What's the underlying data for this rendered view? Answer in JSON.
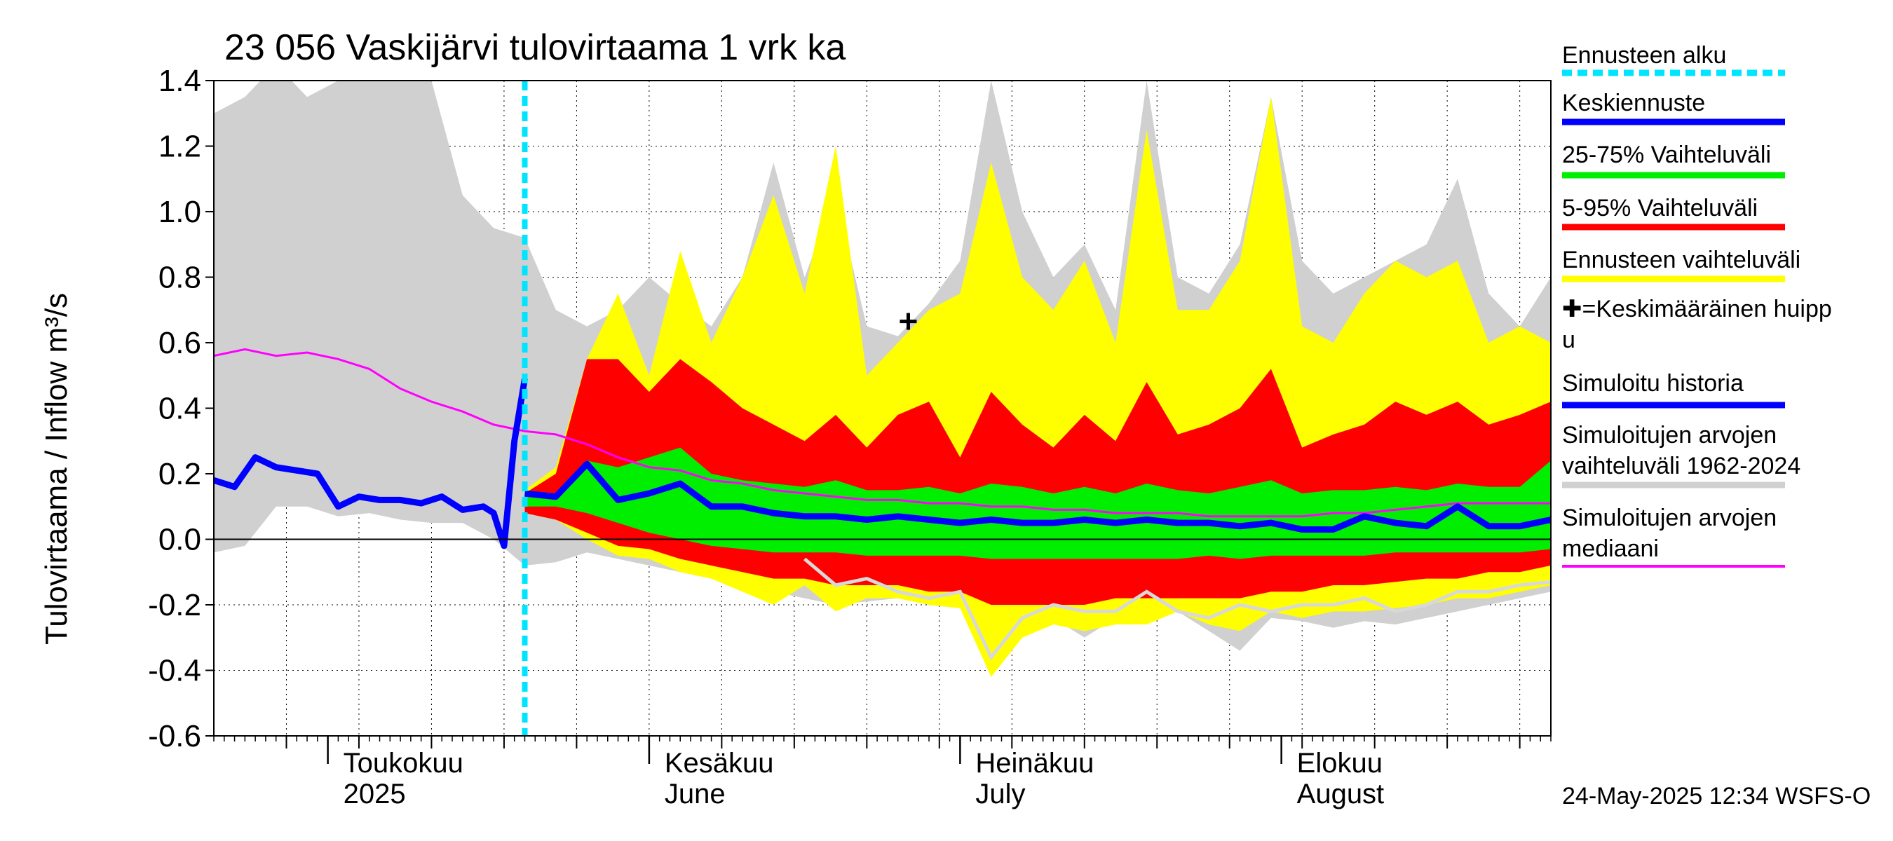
{
  "chart_data": {
    "type": "area",
    "title": "23 056 Vaskijärvi tulovirtaama 1 vrk ka",
    "ylabel": "Tulovirtaama / Inflow   m³/s",
    "ylim": [
      -0.6,
      1.4
    ],
    "yticks": [
      "1.4",
      "1.2",
      "1.0",
      "0.8",
      "0.6",
      "0.4",
      "0.2",
      "0.0",
      "-0.2",
      "-0.4",
      "-0.6"
    ],
    "ytick_values": [
      1.4,
      1.2,
      1.0,
      0.8,
      0.6,
      0.4,
      0.2,
      0.0,
      -0.2,
      -0.4,
      -0.6
    ],
    "x_start": "2025-04-20",
    "x_end": "2025-08-27",
    "month_labels": [
      {
        "line1": "Toukokuu",
        "line2": "2025",
        "date": "2025-05-01"
      },
      {
        "line1": "Kesäkuu",
        "line2": "June",
        "date": "2025-06-01"
      },
      {
        "line1": "Heinäkuu",
        "line2": "July",
        "date": "2025-07-01"
      },
      {
        "line1": "Elokuu",
        "line2": "August",
        "date": "2025-08-01"
      }
    ],
    "forecast_start": "2025-05-20",
    "mean_peak": {
      "date": "2025-06-26",
      "value": 0.665
    },
    "timestamp": "24-May-2025 12:34 WSFS-O",
    "grid": true,
    "legend_position": "right",
    "colors": {
      "forecast_start": "#00e5ff",
      "mean_forecast": "#0000ff",
      "p25_75": "#00ee00",
      "p5_95": "#ff0000",
      "forecast_range": "#ffff00",
      "sim_history": "#0000ff",
      "hist_range": "#d0d0d0",
      "hist_median": "#ff00ff",
      "peak_marker": "#000000"
    },
    "legend": [
      {
        "key": "forecast_start",
        "lines": [
          "Ennusteen alku"
        ],
        "style": "dashed"
      },
      {
        "key": "mean_forecast",
        "lines": [
          "Keskiennuste"
        ],
        "style": "thick"
      },
      {
        "key": "p25_75",
        "lines": [
          "25-75% Vaihteluväli"
        ],
        "style": "thick"
      },
      {
        "key": "p5_95",
        "lines": [
          "5-95% Vaihteluväli"
        ],
        "style": "thick"
      },
      {
        "key": "forecast_range",
        "lines": [
          "Ennusteen vaihteluväli"
        ],
        "style": "thick"
      },
      {
        "key": "peak_marker",
        "lines": [
          "✚=Keskimääräinen huipp",
          "u"
        ],
        "style": "none"
      },
      {
        "key": "sim_history",
        "lines": [
          "Simuloitu historia"
        ],
        "style": "thick"
      },
      {
        "key": "hist_range",
        "lines": [
          "Simuloitujen arvojen",
          "vaihteluväli 1962-2024"
        ],
        "style": "thick"
      },
      {
        "key": "hist_median",
        "lines": [
          "Simuloitujen arvojen",
          "mediaani"
        ],
        "style": "thin"
      }
    ],
    "series": {
      "hist_range": {
        "x": [
          "2025-04-20",
          "2025-04-23",
          "2025-04-26",
          "2025-04-29",
          "2025-05-02",
          "2025-05-05",
          "2025-05-08",
          "2025-05-11",
          "2025-05-14",
          "2025-05-17",
          "2025-05-20",
          "2025-05-23",
          "2025-05-26",
          "2025-05-29",
          "2025-06-01",
          "2025-06-04",
          "2025-06-07",
          "2025-06-10",
          "2025-06-13",
          "2025-06-16",
          "2025-06-19",
          "2025-06-22",
          "2025-06-25",
          "2025-06-28",
          "2025-07-01",
          "2025-07-04",
          "2025-07-07",
          "2025-07-10",
          "2025-07-13",
          "2025-07-16",
          "2025-07-19",
          "2025-07-22",
          "2025-07-25",
          "2025-07-28",
          "2025-07-31",
          "2025-08-03",
          "2025-08-06",
          "2025-08-09",
          "2025-08-12",
          "2025-08-15",
          "2025-08-18",
          "2025-08-21",
          "2025-08-24",
          "2025-08-27"
        ],
        "upper": [
          1.3,
          1.35,
          1.45,
          1.35,
          1.4,
          1.42,
          1.4,
          1.4,
          1.05,
          0.95,
          0.92,
          0.7,
          0.65,
          0.7,
          0.8,
          0.72,
          0.65,
          0.8,
          1.15,
          0.8,
          1.05,
          0.65,
          0.62,
          0.72,
          0.85,
          1.4,
          1.0,
          0.8,
          0.9,
          0.7,
          1.4,
          0.8,
          0.75,
          0.9,
          1.35,
          0.85,
          0.75,
          0.8,
          0.85,
          0.9,
          1.1,
          0.75,
          0.65,
          0.8
        ],
        "lower": [
          -0.04,
          -0.02,
          0.1,
          0.1,
          0.07,
          0.08,
          0.06,
          0.05,
          0.05,
          0.0,
          -0.08,
          -0.07,
          -0.04,
          -0.06,
          -0.08,
          -0.1,
          -0.12,
          -0.15,
          -0.16,
          -0.18,
          -0.2,
          -0.19,
          -0.18,
          -0.2,
          -0.21,
          -0.38,
          -0.28,
          -0.24,
          -0.3,
          -0.24,
          -0.25,
          -0.22,
          -0.28,
          -0.34,
          -0.24,
          -0.25,
          -0.27,
          -0.25,
          -0.26,
          -0.24,
          -0.22,
          -0.2,
          -0.18,
          -0.16
        ]
      },
      "hist_median": {
        "x": [
          "2025-04-20",
          "2025-04-23",
          "2025-04-26",
          "2025-04-29",
          "2025-05-02",
          "2025-05-05",
          "2025-05-08",
          "2025-05-11",
          "2025-05-14",
          "2025-05-17",
          "2025-05-20",
          "2025-05-23",
          "2025-05-26",
          "2025-05-29",
          "2025-06-01",
          "2025-06-04",
          "2025-06-07",
          "2025-06-10",
          "2025-06-13",
          "2025-06-16",
          "2025-06-19",
          "2025-06-22",
          "2025-06-25",
          "2025-06-28",
          "2025-07-01",
          "2025-07-04",
          "2025-07-07",
          "2025-07-10",
          "2025-07-13",
          "2025-07-16",
          "2025-07-19",
          "2025-07-22",
          "2025-07-25",
          "2025-07-28",
          "2025-07-31",
          "2025-08-03",
          "2025-08-06",
          "2025-08-09",
          "2025-08-12",
          "2025-08-15",
          "2025-08-18",
          "2025-08-21",
          "2025-08-24",
          "2025-08-27"
        ],
        "values": [
          0.56,
          0.58,
          0.56,
          0.57,
          0.55,
          0.52,
          0.46,
          0.42,
          0.39,
          0.35,
          0.33,
          0.32,
          0.29,
          0.25,
          0.22,
          0.21,
          0.18,
          0.17,
          0.15,
          0.14,
          0.13,
          0.12,
          0.12,
          0.11,
          0.11,
          0.1,
          0.1,
          0.09,
          0.09,
          0.08,
          0.08,
          0.08,
          0.07,
          0.07,
          0.07,
          0.07,
          0.08,
          0.08,
          0.09,
          0.1,
          0.11,
          0.11,
          0.11,
          0.11
        ]
      },
      "sim_history": {
        "x": [
          "2025-04-20",
          "2025-04-22",
          "2025-04-24",
          "2025-04-26",
          "2025-04-28",
          "2025-04-30",
          "2025-05-02",
          "2025-05-04",
          "2025-05-06",
          "2025-05-08",
          "2025-05-10",
          "2025-05-12",
          "2025-05-14",
          "2025-05-16",
          "2025-05-17",
          "2025-05-18",
          "2025-05-19",
          "2025-05-20"
        ],
        "values": [
          0.18,
          0.16,
          0.25,
          0.22,
          0.21,
          0.2,
          0.1,
          0.13,
          0.12,
          0.12,
          0.11,
          0.13,
          0.09,
          0.1,
          0.08,
          -0.02,
          0.3,
          0.49
        ]
      },
      "forecast_range": {
        "x": [
          "2025-05-20",
          "2025-05-23",
          "2025-05-26",
          "2025-05-29",
          "2025-06-01",
          "2025-06-04",
          "2025-06-07",
          "2025-06-10",
          "2025-06-13",
          "2025-06-16",
          "2025-06-19",
          "2025-06-22",
          "2025-06-25",
          "2025-06-28",
          "2025-07-01",
          "2025-07-04",
          "2025-07-07",
          "2025-07-10",
          "2025-07-13",
          "2025-07-16",
          "2025-07-19",
          "2025-07-22",
          "2025-07-25",
          "2025-07-28",
          "2025-07-31",
          "2025-08-03",
          "2025-08-06",
          "2025-08-09",
          "2025-08-12",
          "2025-08-15",
          "2025-08-18",
          "2025-08-21",
          "2025-08-24",
          "2025-08-27"
        ],
        "upper": [
          0.15,
          0.22,
          0.55,
          0.75,
          0.5,
          0.88,
          0.6,
          0.8,
          1.05,
          0.75,
          1.2,
          0.5,
          0.6,
          0.7,
          0.75,
          1.15,
          0.8,
          0.7,
          0.85,
          0.6,
          1.25,
          0.7,
          0.7,
          0.85,
          1.35,
          0.65,
          0.6,
          0.75,
          0.85,
          0.8,
          0.85,
          0.6,
          0.65,
          0.6
        ],
        "lower": [
          0.08,
          0.06,
          0.0,
          -0.05,
          -0.06,
          -0.1,
          -0.12,
          -0.16,
          -0.2,
          -0.14,
          -0.22,
          -0.18,
          -0.18,
          -0.2,
          -0.21,
          -0.42,
          -0.3,
          -0.26,
          -0.28,
          -0.26,
          -0.26,
          -0.22,
          -0.26,
          -0.28,
          -0.22,
          -0.24,
          -0.22,
          -0.22,
          -0.21,
          -0.2,
          -0.18,
          -0.18,
          -0.16,
          -0.14
        ]
      },
      "p5_95": {
        "x": [
          "2025-05-20",
          "2025-05-23",
          "2025-05-26",
          "2025-05-29",
          "2025-06-01",
          "2025-06-04",
          "2025-06-07",
          "2025-06-10",
          "2025-06-13",
          "2025-06-16",
          "2025-06-19",
          "2025-06-22",
          "2025-06-25",
          "2025-06-28",
          "2025-07-01",
          "2025-07-04",
          "2025-07-07",
          "2025-07-10",
          "2025-07-13",
          "2025-07-16",
          "2025-07-19",
          "2025-07-22",
          "2025-07-25",
          "2025-07-28",
          "2025-07-31",
          "2025-08-03",
          "2025-08-06",
          "2025-08-09",
          "2025-08-12",
          "2025-08-15",
          "2025-08-18",
          "2025-08-21",
          "2025-08-24",
          "2025-08-27"
        ],
        "upper": [
          0.14,
          0.2,
          0.55,
          0.55,
          0.45,
          0.55,
          0.48,
          0.4,
          0.35,
          0.3,
          0.38,
          0.28,
          0.38,
          0.42,
          0.25,
          0.45,
          0.35,
          0.28,
          0.38,
          0.3,
          0.48,
          0.32,
          0.35,
          0.4,
          0.52,
          0.28,
          0.32,
          0.35,
          0.42,
          0.38,
          0.42,
          0.35,
          0.38,
          0.42
        ],
        "lower": [
          0.08,
          0.06,
          0.02,
          -0.02,
          -0.03,
          -0.06,
          -0.08,
          -0.1,
          -0.12,
          -0.12,
          -0.14,
          -0.14,
          -0.14,
          -0.16,
          -0.16,
          -0.2,
          -0.2,
          -0.2,
          -0.2,
          -0.18,
          -0.18,
          -0.18,
          -0.18,
          -0.18,
          -0.16,
          -0.16,
          -0.14,
          -0.14,
          -0.13,
          -0.12,
          -0.12,
          -0.1,
          -0.1,
          -0.08
        ]
      },
      "p25_75": {
        "x": [
          "2025-05-20",
          "2025-05-23",
          "2025-05-26",
          "2025-05-29",
          "2025-06-01",
          "2025-06-04",
          "2025-06-07",
          "2025-06-10",
          "2025-06-13",
          "2025-06-16",
          "2025-06-19",
          "2025-06-22",
          "2025-06-25",
          "2025-06-28",
          "2025-07-01",
          "2025-07-04",
          "2025-07-07",
          "2025-07-10",
          "2025-07-13",
          "2025-07-16",
          "2025-07-19",
          "2025-07-22",
          "2025-07-25",
          "2025-07-28",
          "2025-07-31",
          "2025-08-03",
          "2025-08-06",
          "2025-08-09",
          "2025-08-12",
          "2025-08-15",
          "2025-08-18",
          "2025-08-21",
          "2025-08-24",
          "2025-08-27"
        ],
        "upper": [
          0.13,
          0.12,
          0.24,
          0.22,
          0.25,
          0.28,
          0.2,
          0.18,
          0.17,
          0.16,
          0.18,
          0.15,
          0.15,
          0.16,
          0.14,
          0.17,
          0.16,
          0.14,
          0.16,
          0.14,
          0.17,
          0.15,
          0.14,
          0.16,
          0.18,
          0.14,
          0.15,
          0.15,
          0.16,
          0.15,
          0.17,
          0.16,
          0.16,
          0.24
        ],
        "lower": [
          0.1,
          0.1,
          0.08,
          0.05,
          0.02,
          0.0,
          -0.02,
          -0.03,
          -0.04,
          -0.04,
          -0.04,
          -0.05,
          -0.05,
          -0.05,
          -0.05,
          -0.06,
          -0.06,
          -0.06,
          -0.06,
          -0.06,
          -0.06,
          -0.06,
          -0.05,
          -0.06,
          -0.05,
          -0.05,
          -0.05,
          -0.05,
          -0.04,
          -0.04,
          -0.04,
          -0.04,
          -0.04,
          -0.03
        ]
      },
      "mean_forecast": {
        "x": [
          "2025-05-20",
          "2025-05-23",
          "2025-05-26",
          "2025-05-29",
          "2025-06-01",
          "2025-06-04",
          "2025-06-07",
          "2025-06-10",
          "2025-06-13",
          "2025-06-16",
          "2025-06-19",
          "2025-06-22",
          "2025-06-25",
          "2025-06-28",
          "2025-07-01",
          "2025-07-04",
          "2025-07-07",
          "2025-07-10",
          "2025-07-13",
          "2025-07-16",
          "2025-07-19",
          "2025-07-22",
          "2025-07-25",
          "2025-07-28",
          "2025-07-31",
          "2025-08-03",
          "2025-08-06",
          "2025-08-09",
          "2025-08-12",
          "2025-08-15",
          "2025-08-18",
          "2025-08-21",
          "2025-08-24",
          "2025-08-27"
        ],
        "values": [
          0.14,
          0.13,
          0.23,
          0.12,
          0.14,
          0.17,
          0.1,
          0.1,
          0.08,
          0.07,
          0.07,
          0.06,
          0.07,
          0.06,
          0.05,
          0.06,
          0.05,
          0.05,
          0.06,
          0.05,
          0.06,
          0.05,
          0.05,
          0.04,
          0.05,
          0.03,
          0.03,
          0.07,
          0.05,
          0.04,
          0.1,
          0.04,
          0.04,
          0.06
        ]
      },
      "hist_light_trace": {
        "x": [
          "2025-06-16",
          "2025-06-19",
          "2025-06-22",
          "2025-06-25",
          "2025-06-28",
          "2025-07-01",
          "2025-07-04",
          "2025-07-07",
          "2025-07-10",
          "2025-07-13",
          "2025-07-16",
          "2025-07-19",
          "2025-07-22",
          "2025-07-25",
          "2025-07-28",
          "2025-07-31",
          "2025-08-03",
          "2025-08-06",
          "2025-08-09",
          "2025-08-12",
          "2025-08-15",
          "2025-08-18",
          "2025-08-21",
          "2025-08-24",
          "2025-08-27"
        ],
        "values": [
          -0.06,
          -0.14,
          -0.12,
          -0.16,
          -0.18,
          -0.16,
          -0.36,
          -0.24,
          -0.2,
          -0.22,
          -0.22,
          -0.16,
          -0.22,
          -0.24,
          -0.2,
          -0.22,
          -0.2,
          -0.2,
          -0.18,
          -0.22,
          -0.2,
          -0.16,
          -0.16,
          -0.14,
          -0.13
        ]
      }
    }
  }
}
